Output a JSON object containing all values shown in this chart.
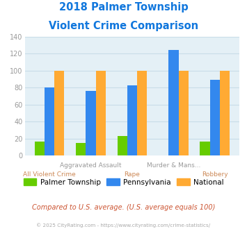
{
  "title_line1": "2018 Palmer Township",
  "title_line2": "Violent Crime Comparison",
  "categories_top": [
    "",
    "Aggravated Assault",
    "",
    "Murder & Mans...",
    ""
  ],
  "categories_bottom": [
    "All Violent Crime",
    "",
    "Rape",
    "",
    "Robbery"
  ],
  "palmer": [
    17,
    15,
    23,
    0,
    17
  ],
  "pennsylvania": [
    80,
    76,
    83,
    124,
    89
  ],
  "national": [
    100,
    100,
    100,
    100,
    100
  ],
  "palmer_color": "#66cc00",
  "pennsylvania_color": "#3388ee",
  "national_color": "#ffaa33",
  "title_color": "#1177dd",
  "plot_bg_color": "#e4f0f6",
  "ylim": [
    0,
    140
  ],
  "yticks": [
    0,
    20,
    40,
    60,
    80,
    100,
    120,
    140
  ],
  "ylabel_color": "#999999",
  "xlabel_top_color": "#999999",
  "xlabel_bottom_color": "#cc8855",
  "legend_labels": [
    "Palmer Township",
    "Pennsylvania",
    "National"
  ],
  "note_text": "Compared to U.S. average. (U.S. average equals 100)",
  "note_color": "#cc5533",
  "copyright_text": "© 2025 CityRating.com - https://www.cityrating.com/crime-statistics/",
  "copyright_color": "#aaaaaa",
  "grid_color": "#c8dde8"
}
